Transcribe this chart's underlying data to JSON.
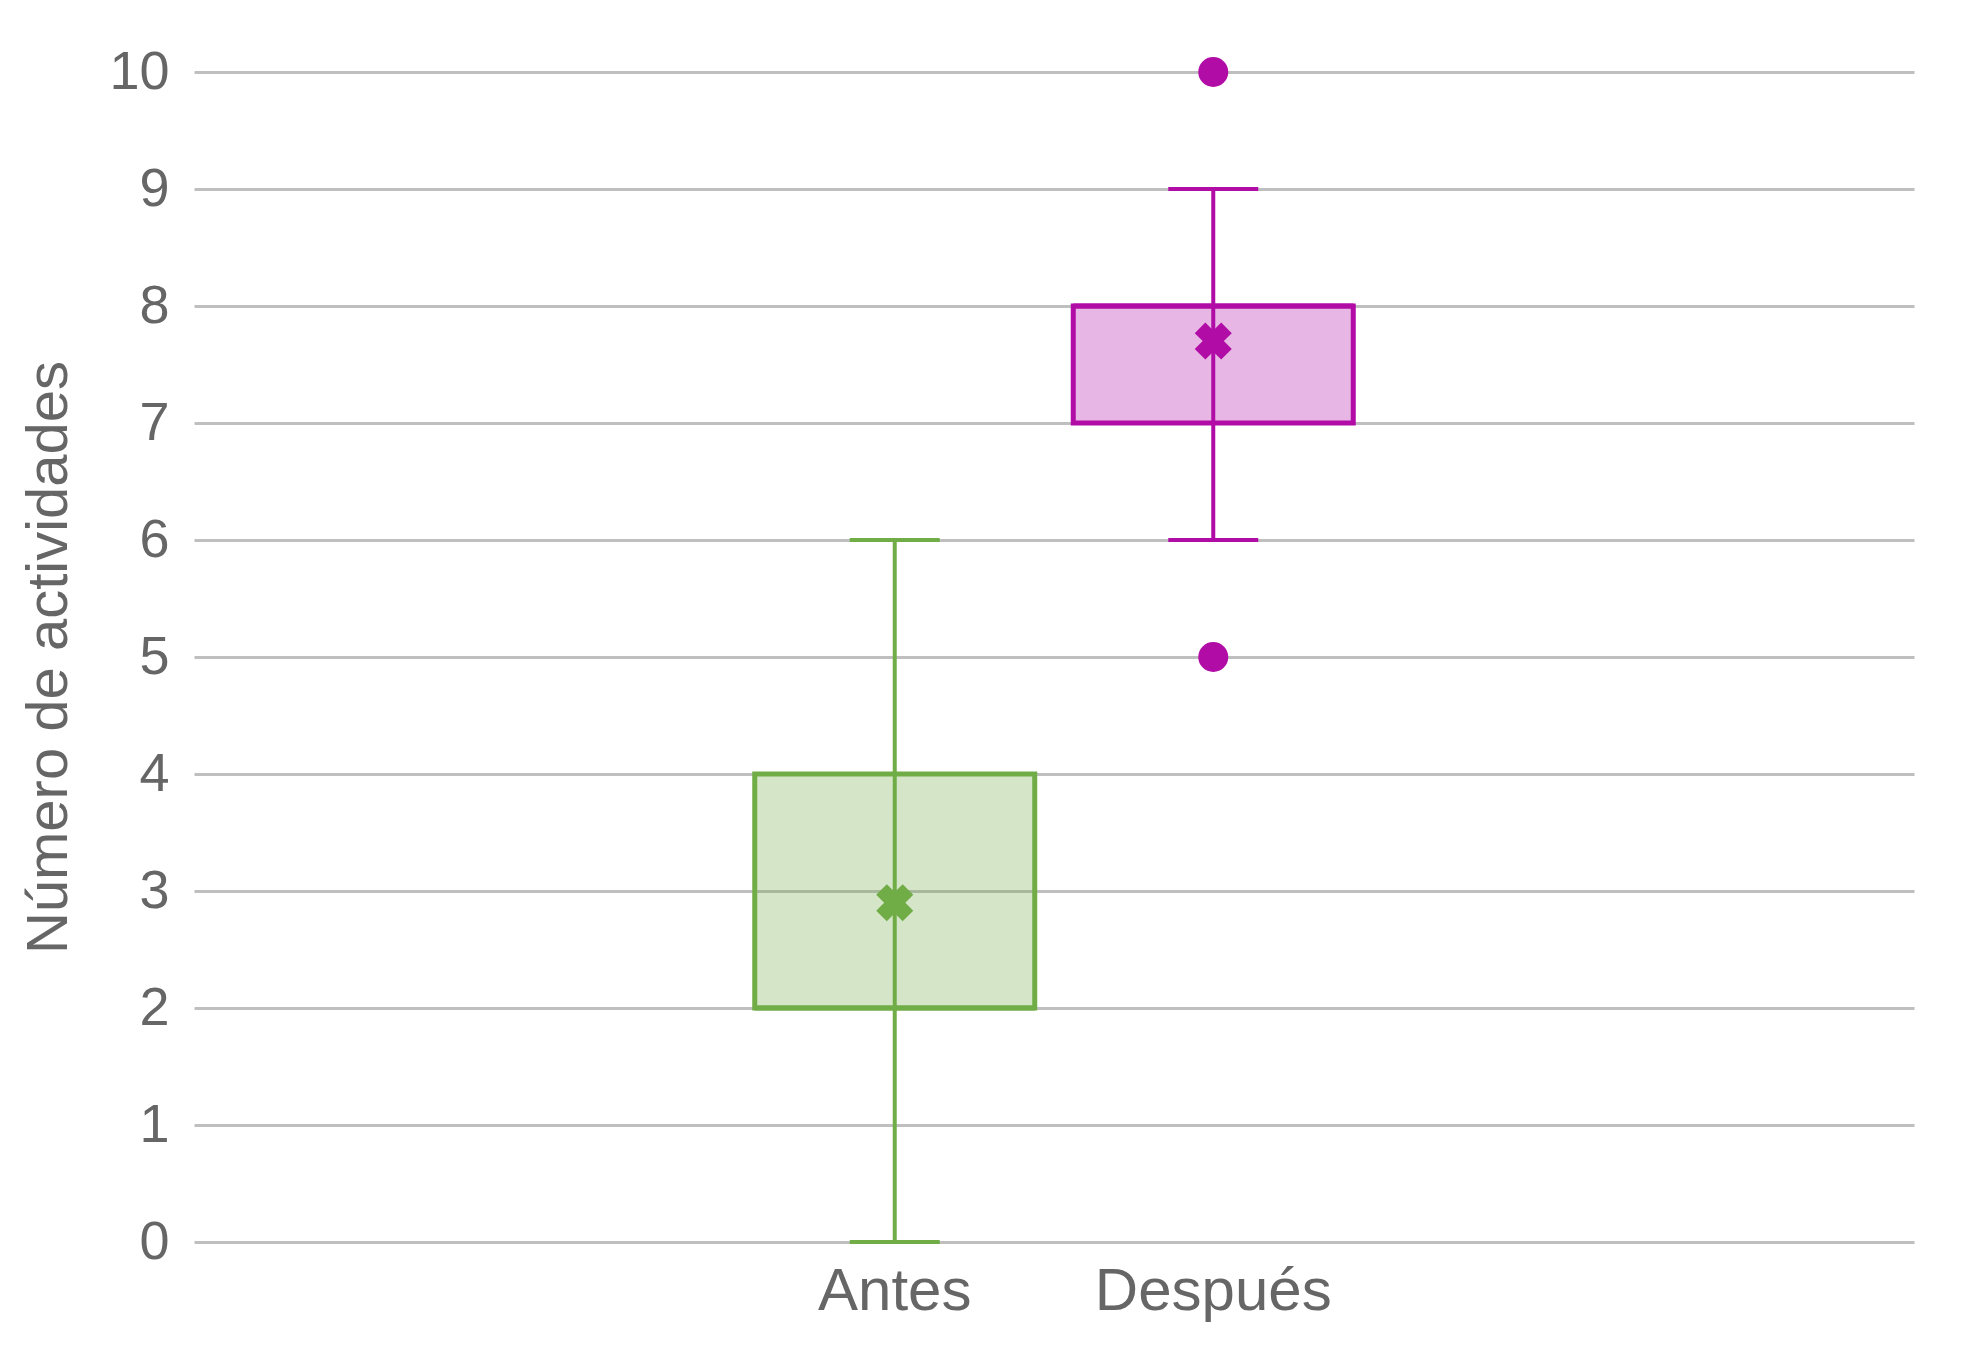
{
  "chart_data": {
    "type": "box",
    "ylabel": "Número de actividades",
    "categories": [
      "Antes",
      "Después"
    ],
    "colors": [
      "#70ad47",
      "#b10ca6"
    ],
    "boxes": [
      {
        "low": 0,
        "q1": 2,
        "median": 2,
        "q3": 4,
        "high": 6,
        "mean": 2.9
      },
      {
        "low": 6,
        "q1": 7,
        "median": 8,
        "q3": 8,
        "high": 9,
        "mean": 7.7,
        "outliers": [
          10,
          5
        ]
      }
    ],
    "ylim": [
      0,
      10
    ],
    "yticks": [
      0,
      1,
      2,
      3,
      4,
      5,
      6,
      7,
      8,
      9,
      10
    ],
    "grid": "y",
    "marker": "cross"
  }
}
